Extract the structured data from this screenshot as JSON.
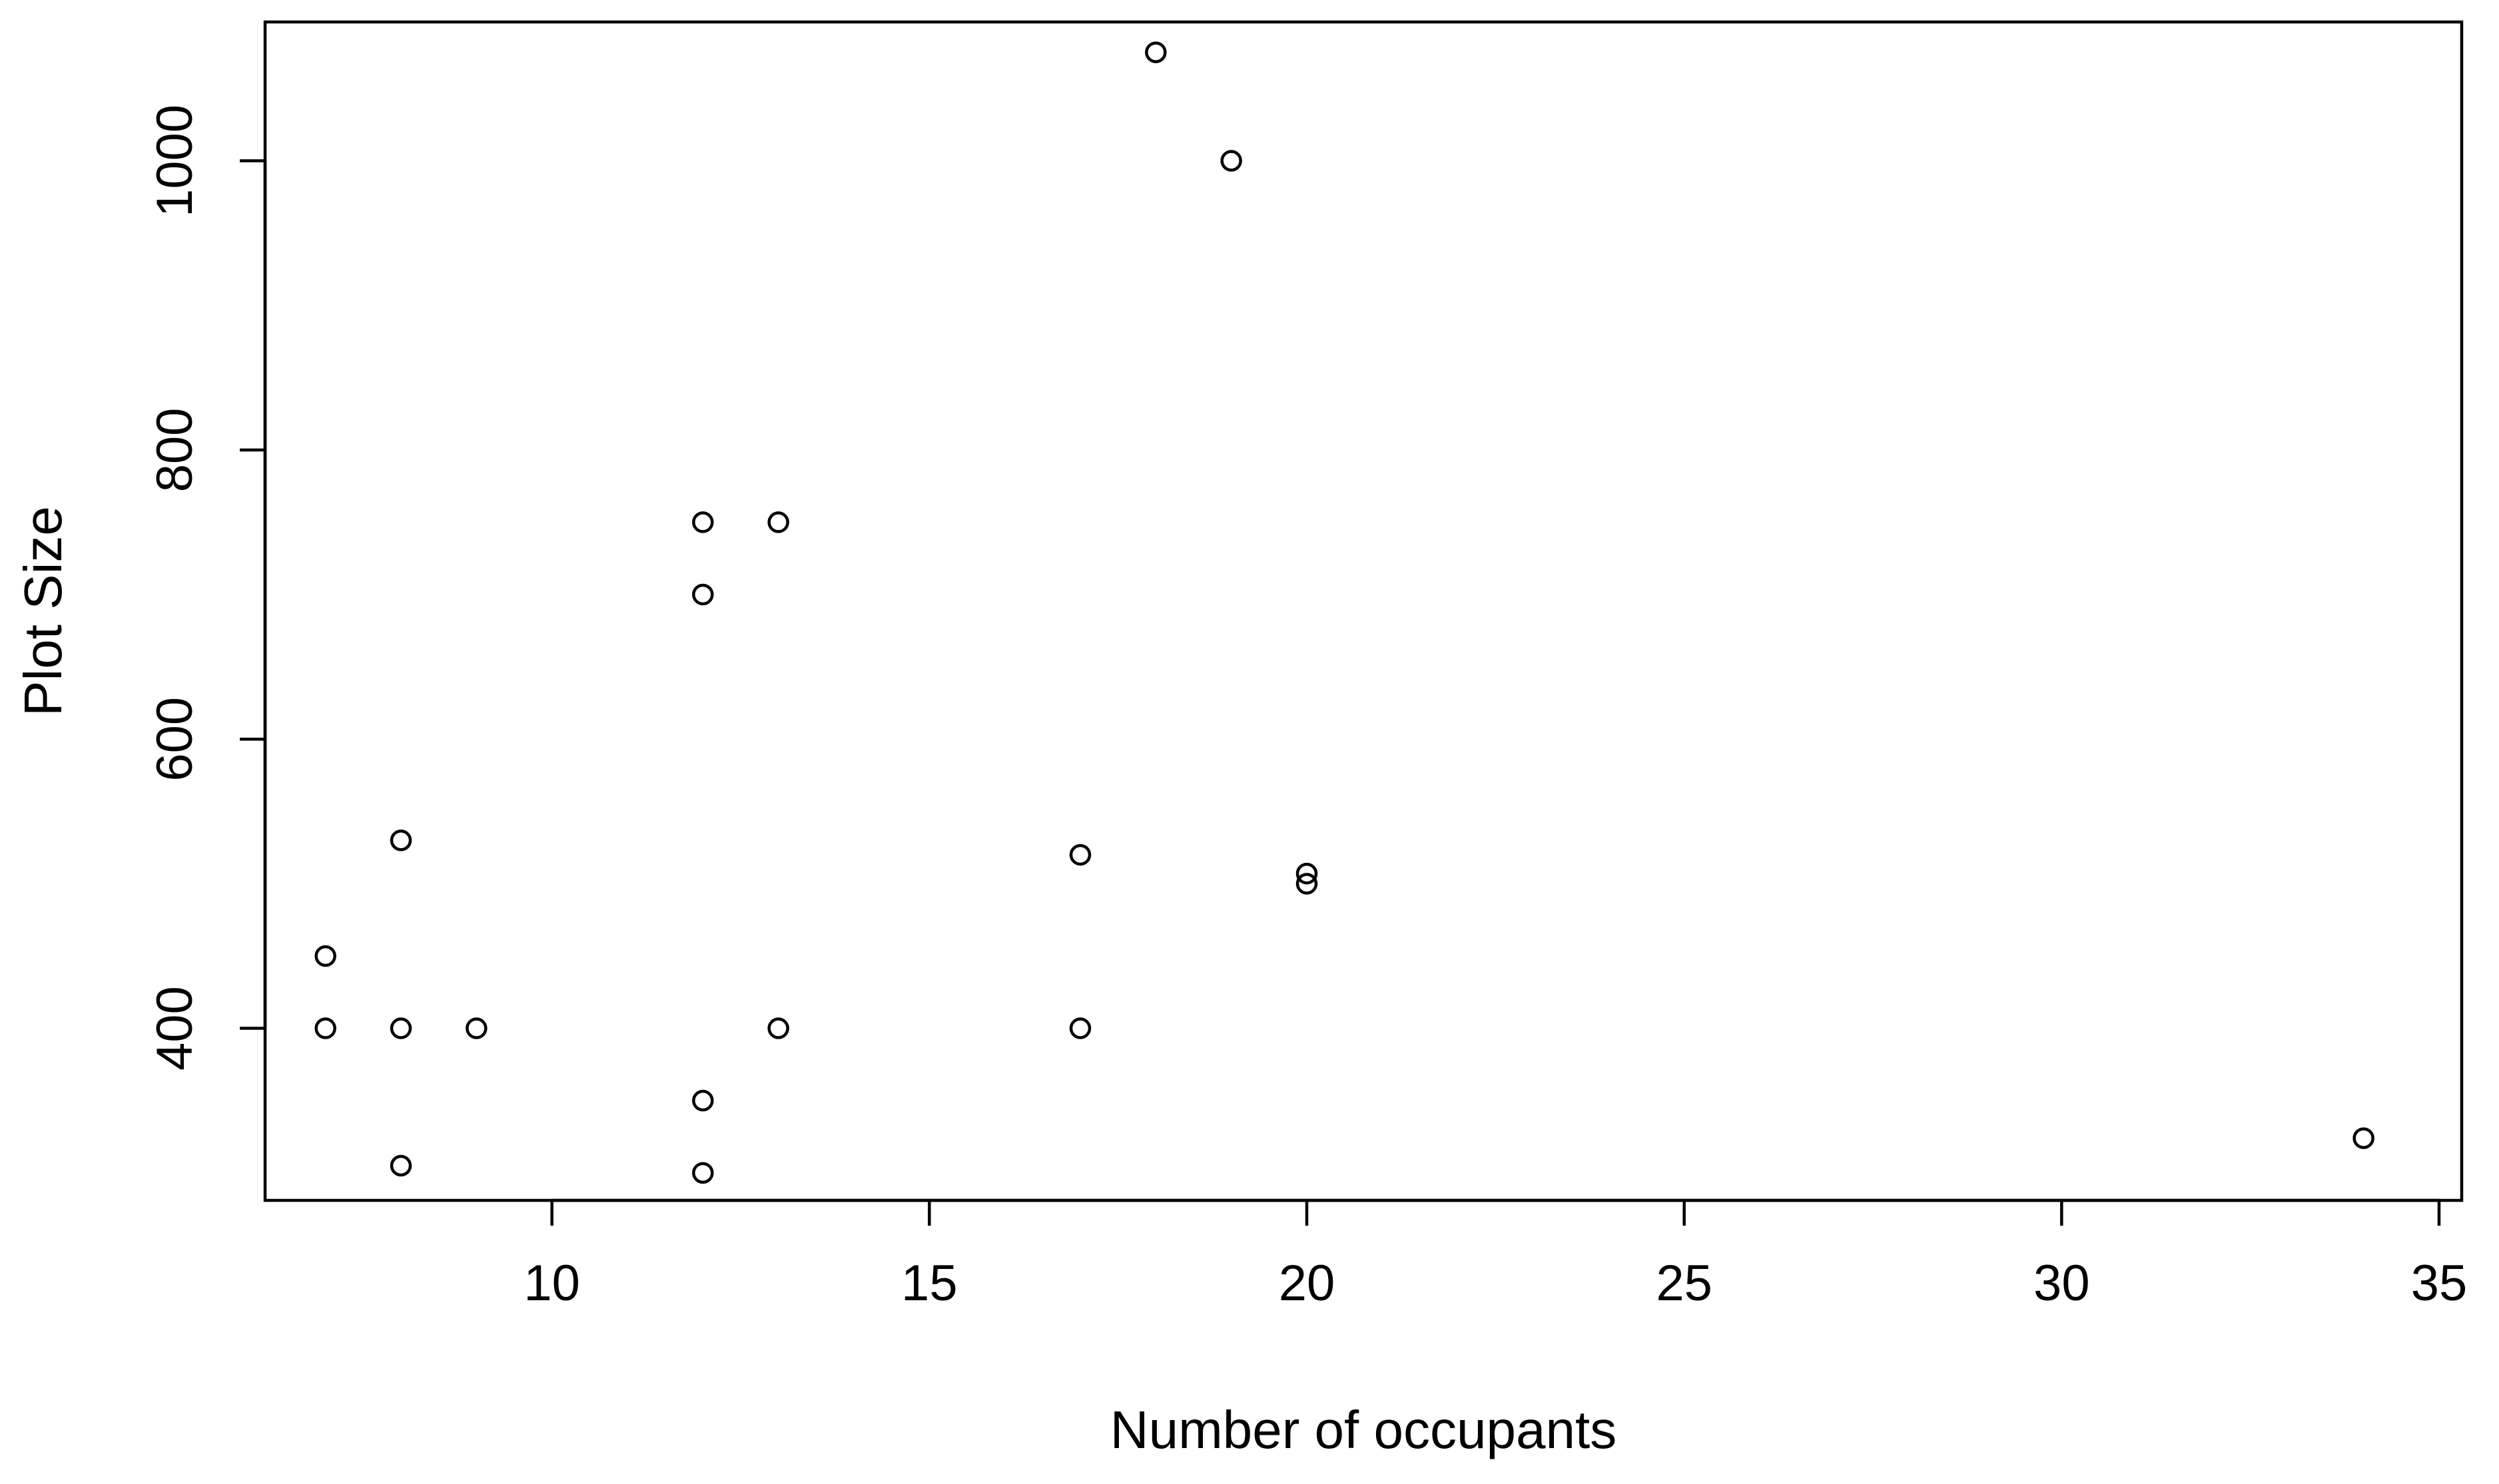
{
  "chart_data": {
    "type": "scatter",
    "title": "",
    "xlabel": "Number of occupants",
    "ylabel": "Plot Size",
    "xlim": [
      6.2,
      35.3
    ],
    "ylim": [
      281,
      1096
    ],
    "x_ticks": [
      10,
      15,
      20,
      25,
      30,
      35
    ],
    "x_tick_labels": [
      "10",
      "15",
      "20",
      "25",
      "30",
      "35"
    ],
    "y_ticks": [
      400,
      600,
      800,
      1000
    ],
    "y_tick_labels": [
      "400",
      "600",
      "800",
      "1000"
    ],
    "grid": false,
    "legend": "none",
    "marker": "open-circle",
    "color": "#000000",
    "points": [
      {
        "x": 7,
        "y": 450
      },
      {
        "x": 7,
        "y": 400
      },
      {
        "x": 8,
        "y": 530
      },
      {
        "x": 8,
        "y": 400
      },
      {
        "x": 8,
        "y": 305
      },
      {
        "x": 9,
        "y": 400
      },
      {
        "x": 12,
        "y": 750
      },
      {
        "x": 12,
        "y": 700
      },
      {
        "x": 12,
        "y": 350
      },
      {
        "x": 12,
        "y": 300
      },
      {
        "x": 13,
        "y": 750
      },
      {
        "x": 13,
        "y": 400
      },
      {
        "x": 17,
        "y": 520
      },
      {
        "x": 17,
        "y": 400
      },
      {
        "x": 18,
        "y": 1075
      },
      {
        "x": 19,
        "y": 1000
      },
      {
        "x": 20,
        "y": 507
      },
      {
        "x": 20,
        "y": 500
      },
      {
        "x": 34,
        "y": 324
      }
    ]
  }
}
